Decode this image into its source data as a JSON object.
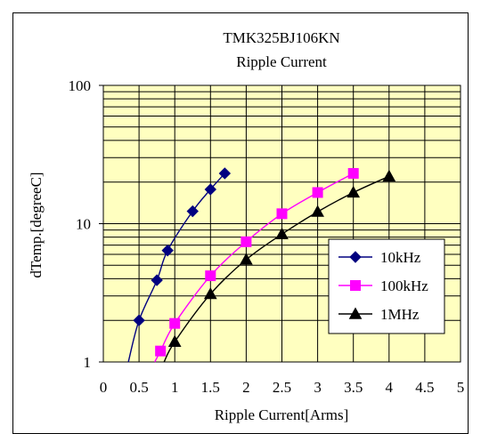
{
  "chart_data": {
    "type": "line",
    "title": "TMK325BJ106KN",
    "subtitle": "Ripple Current",
    "xlabel": "Ripple Current[Arms]",
    "ylabel": "dTemp.[degreeC]",
    "xlim": [
      0,
      5
    ],
    "ylim": [
      1,
      100
    ],
    "yscale": "log",
    "x_ticks": [
      "0",
      "0.5",
      "1",
      "1.5",
      "2",
      "2.5",
      "3",
      "3.5",
      "4",
      "4.5",
      "5"
    ],
    "y_ticks": [
      "1",
      "10",
      "100"
    ],
    "grid": true,
    "plot_background": "#ffffc0",
    "legend_position": "lower-right inside plot",
    "series": [
      {
        "name": "10kHz",
        "color": "#000080",
        "marker": "diamond",
        "points": [
          [
            0.5,
            2.0
          ],
          [
            0.75,
            3.9
          ],
          [
            0.9,
            6.4
          ],
          [
            1.25,
            12.3
          ],
          [
            1.5,
            17.7
          ],
          [
            1.7,
            23.1
          ]
        ],
        "fit_start": [
          0.35,
          1.0
        ]
      },
      {
        "name": "100kHz",
        "color": "#ff00ff",
        "marker": "square",
        "points": [
          [
            0.8,
            1.2
          ],
          [
            1.0,
            1.9
          ],
          [
            1.5,
            4.2
          ],
          [
            2.0,
            7.4
          ],
          [
            2.5,
            11.8
          ],
          [
            3.0,
            16.8
          ],
          [
            3.5,
            23.1
          ]
        ],
        "fit_start": [
          0.72,
          1.0
        ]
      },
      {
        "name": "1MHz",
        "color": "#000000",
        "marker": "triangle",
        "points": [
          [
            1.0,
            1.4
          ],
          [
            1.5,
            3.1
          ],
          [
            2.0,
            5.5
          ],
          [
            2.5,
            8.4
          ],
          [
            3.0,
            12.2
          ],
          [
            3.5,
            16.8
          ],
          [
            4.0,
            22.0
          ]
        ],
        "fit_start": [
          0.85,
          1.0
        ]
      }
    ]
  }
}
